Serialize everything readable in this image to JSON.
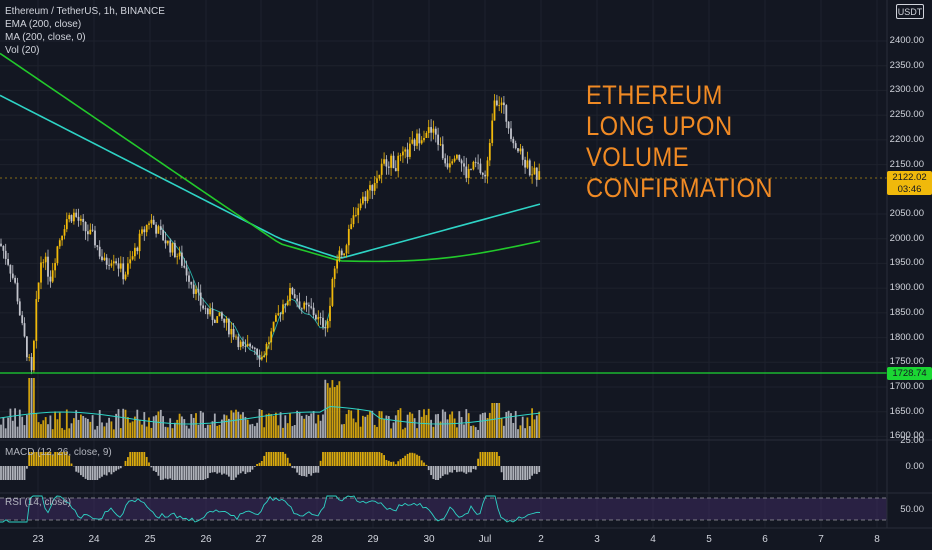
{
  "header": {
    "symbol_title": "Ethereum / TetherUS, 1h, BINANCE",
    "indicators": [
      "EMA (200, close)",
      "MA (200, close, 0)",
      "Vol (20)"
    ],
    "currency": "USDT"
  },
  "price_axis": {
    "labels": [
      "2400.00",
      "2350.00",
      "2300.00",
      "2250.00",
      "2200.00",
      "2150.00",
      "2050.00",
      "2000.00",
      "1950.00",
      "1900.00",
      "1850.00",
      "1800.00",
      "1750.00",
      "1700.00",
      "1650.00",
      "1600.00"
    ],
    "last_price": "2122.02",
    "countdown": "03:46",
    "horizontal_line_price": "1728.74"
  },
  "macd_pane": {
    "label": "MACD (12, 26, close, 9)",
    "axis_labels": [
      "25.00",
      "0.00"
    ]
  },
  "rsi_pane": {
    "label": "RSI (14, close)",
    "axis_labels": [
      "50.00"
    ]
  },
  "time_axis": {
    "labels": [
      "23",
      "24",
      "25",
      "26",
      "27",
      "28",
      "29",
      "30",
      "Jul",
      "2",
      "3",
      "4",
      "5",
      "6",
      "7",
      "8"
    ]
  },
  "annotation": {
    "lines": [
      "ETHEREUM",
      "LONG UPON",
      "VOLUME",
      "CONFIRMATION"
    ],
    "color": "#f08a24"
  },
  "colors": {
    "background": "#131722",
    "up_candle": "#f0b90b",
    "down_candle": "#c2c4cc",
    "ema": "#2ed3c5",
    "ma": "#22c92b",
    "hline": "#1bd633",
    "rsi_band": "#3c2a5e"
  },
  "chart_data": {
    "type": "candlestick",
    "interval": "1h",
    "title": "Ethereum / TetherUS, 1h, BINANCE",
    "ylim": [
      1600,
      2450
    ],
    "close_path": [
      [
        "23",
        1975
      ],
      [
        "23",
        1880
      ],
      [
        "23",
        1720
      ],
      [
        "23",
        1990
      ],
      [
        "24",
        2040
      ],
      [
        "24",
        2010
      ],
      [
        "24",
        1960
      ],
      [
        "24",
        1950
      ],
      [
        "25",
        2035
      ],
      [
        "25",
        2000
      ],
      [
        "25",
        1940
      ],
      [
        "26",
        1870
      ],
      [
        "26",
        1840
      ],
      [
        "26",
        1760
      ],
      [
        "27",
        1790
      ],
      [
        "27",
        1880
      ],
      [
        "27",
        1840
      ],
      [
        "28",
        1820
      ],
      [
        "28",
        1960
      ],
      [
        "28",
        2060
      ],
      [
        "29",
        2130
      ],
      [
        "29",
        2180
      ],
      [
        "29",
        2230
      ],
      [
        "30",
        2220
      ],
      [
        "30",
        2160
      ],
      [
        "30",
        2120
      ],
      [
        "Jul",
        2290
      ],
      [
        "Jul",
        2220
      ],
      [
        "Jul",
        2140
      ],
      [
        "2",
        2122
      ]
    ],
    "ema_200": [
      [
        0,
        2290
      ],
      [
        150,
        2130
      ],
      [
        280,
        1990
      ],
      [
        330,
        1960
      ],
      [
        400,
        1985
      ],
      [
        460,
        2020
      ],
      [
        540,
        2070
      ]
    ],
    "ma_200": [
      [
        0,
        2380
      ],
      [
        150,
        2150
      ],
      [
        280,
        1990
      ],
      [
        330,
        1960
      ],
      [
        400,
        1940
      ],
      [
        460,
        1960
      ],
      [
        540,
        1995
      ]
    ],
    "horizontal_line": 1728.74,
    "last_price": 2122.02
  }
}
